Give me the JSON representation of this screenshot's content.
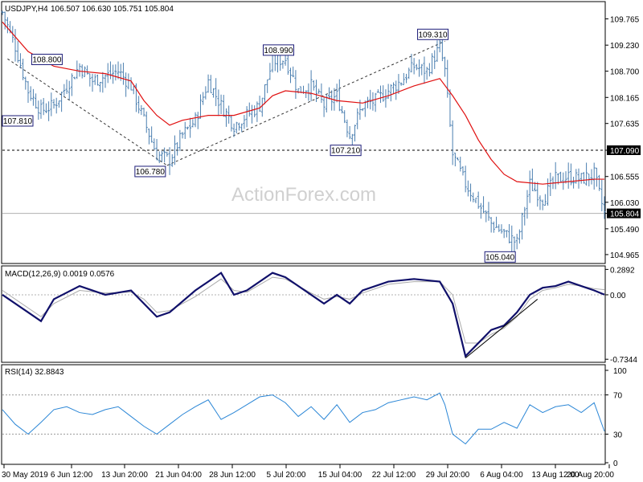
{
  "chart_data": {
    "symbol": "USDJPY,H4",
    "ohlc_header": "106.507 106.630 105.751 105.804",
    "watermark": "ActionForex.com",
    "x_tick_labels": [
      "30 May 2019",
      "6 Jun 12:00",
      "13 Jun 20:00",
      "21 Jun 04:00",
      "28 Jun 12:00",
      "5 Jul 20:00",
      "15 Jul 04:00",
      "22 Jul 12:00",
      "29 Jul 20:00",
      "6 Aug 04:00",
      "13 Aug 12:00",
      "20 Aug 20:00"
    ],
    "panels": [
      {
        "type": "bar",
        "name": "price",
        "y_tick_labels": [
          "109.765",
          "109.230",
          "108.700",
          "108.165",
          "107.635",
          "107.090",
          "106.555",
          "106.030",
          "105.804",
          "105.490",
          "104.965"
        ],
        "ylim": [
          104.8,
          110.1
        ],
        "last_price": "105.804",
        "reference_line": "107.090",
        "annotations": [
          {
            "label": "107.810",
            "value": 107.81
          },
          {
            "label": "108.800",
            "value": 108.8
          },
          {
            "label": "106.780",
            "value": 106.78
          },
          {
            "label": "108.990",
            "value": 108.99
          },
          {
            "label": "107.210",
            "value": 107.21
          },
          {
            "label": "109.310",
            "value": 109.31
          },
          {
            "label": "105.040",
            "value": 105.04
          }
        ],
        "price_path": [
          [
            0,
            109.9
          ],
          [
            5,
            109.2
          ],
          [
            10,
            108.3
          ],
          [
            15,
            107.9
          ],
          [
            20,
            108.0
          ],
          [
            25,
            108.4
          ],
          [
            30,
            108.8
          ],
          [
            35,
            108.5
          ],
          [
            40,
            108.6
          ],
          [
            45,
            108.7
          ],
          [
            50,
            108.4
          ],
          [
            55,
            107.7
          ],
          [
            60,
            107.0
          ],
          [
            65,
            106.9
          ],
          [
            70,
            107.4
          ],
          [
            75,
            107.7
          ],
          [
            80,
            108.5
          ],
          [
            85,
            108.0
          ],
          [
            90,
            107.6
          ],
          [
            95,
            107.8
          ],
          [
            100,
            108.0
          ],
          [
            105,
            108.9
          ],
          [
            110,
            108.95
          ],
          [
            115,
            108.3
          ],
          [
            120,
            108.4
          ],
          [
            125,
            108.0
          ],
          [
            130,
            108.2
          ],
          [
            135,
            107.4
          ],
          [
            140,
            108.0
          ],
          [
            145,
            108.1
          ],
          [
            150,
            108.3
          ],
          [
            155,
            108.5
          ],
          [
            160,
            108.8
          ],
          [
            165,
            108.7
          ],
          [
            170,
            109.2
          ],
          [
            172,
            108.7
          ],
          [
            175,
            107.0
          ],
          [
            180,
            106.4
          ],
          [
            185,
            106.0
          ],
          [
            190,
            105.6
          ],
          [
            195,
            105.4
          ],
          [
            200,
            105.2
          ],
          [
            205,
            106.4
          ],
          [
            210,
            106.1
          ],
          [
            215,
            106.5
          ],
          [
            220,
            106.55
          ],
          [
            225,
            106.5
          ],
          [
            230,
            106.6
          ],
          [
            234,
            105.8
          ]
        ],
        "ma_path": [
          [
            0,
            109.7
          ],
          [
            10,
            109.1
          ],
          [
            20,
            108.8
          ],
          [
            30,
            108.7
          ],
          [
            40,
            108.65
          ],
          [
            50,
            108.5
          ],
          [
            55,
            108.1
          ],
          [
            60,
            107.8
          ],
          [
            65,
            107.6
          ],
          [
            70,
            107.7
          ],
          [
            80,
            107.8
          ],
          [
            90,
            107.8
          ],
          [
            100,
            107.95
          ],
          [
            105,
            108.2
          ],
          [
            110,
            108.3
          ],
          [
            120,
            108.25
          ],
          [
            130,
            108.1
          ],
          [
            140,
            108.05
          ],
          [
            150,
            108.2
          ],
          [
            160,
            108.4
          ],
          [
            170,
            108.55
          ],
          [
            175,
            108.2
          ],
          [
            180,
            107.8
          ],
          [
            185,
            107.3
          ],
          [
            190,
            106.9
          ],
          [
            195,
            106.6
          ],
          [
            200,
            106.45
          ],
          [
            210,
            106.4
          ],
          [
            220,
            106.45
          ],
          [
            230,
            106.5
          ],
          [
            234,
            106.5
          ]
        ]
      },
      {
        "type": "line",
        "name": "MACD(12,26,9)",
        "header": "MACD(12,26,9) 0.0019 0.0576",
        "y_tick_labels": [
          "0.2892",
          "0.00",
          "-0.7344"
        ],
        "ylim": [
          -0.76,
          0.32
        ],
        "series": [
          {
            "name": "MACD",
            "values": [
              [
                0,
                0.0
              ],
              [
                10,
                -0.2
              ],
              [
                15,
                -0.3
              ],
              [
                20,
                -0.05
              ],
              [
                30,
                0.1
              ],
              [
                40,
                0.0
              ],
              [
                50,
                0.05
              ],
              [
                55,
                -0.1
              ],
              [
                60,
                -0.25
              ],
              [
                65,
                -0.2
              ],
              [
                75,
                0.05
              ],
              [
                85,
                0.25
              ],
              [
                90,
                0.0
              ],
              [
                95,
                0.05
              ],
              [
                105,
                0.25
              ],
              [
                110,
                0.2
              ],
              [
                120,
                0.0
              ],
              [
                125,
                -0.1
              ],
              [
                130,
                0.0
              ],
              [
                135,
                -0.1
              ],
              [
                140,
                0.05
              ],
              [
                150,
                0.15
              ],
              [
                160,
                0.18
              ],
              [
                170,
                0.15
              ],
              [
                175,
                -0.1
              ],
              [
                180,
                -0.7
              ],
              [
                185,
                -0.55
              ],
              [
                190,
                -0.4
              ],
              [
                195,
                -0.35
              ],
              [
                200,
                -0.2
              ],
              [
                205,
                0.0
              ],
              [
                210,
                0.08
              ],
              [
                215,
                0.1
              ],
              [
                220,
                0.15
              ],
              [
                225,
                0.1
              ],
              [
                230,
                0.05
              ],
              [
                234,
                0.0019
              ]
            ]
          },
          {
            "name": "Signal",
            "values": [
              [
                0,
                0.05
              ],
              [
                10,
                -0.15
              ],
              [
                15,
                -0.25
              ],
              [
                20,
                -0.1
              ],
              [
                30,
                0.05
              ],
              [
                40,
                0.02
              ],
              [
                50,
                0.03
              ],
              [
                55,
                -0.05
              ],
              [
                60,
                -0.2
              ],
              [
                65,
                -0.18
              ],
              [
                75,
                -0.02
              ],
              [
                85,
                0.18
              ],
              [
                90,
                0.05
              ],
              [
                95,
                0.03
              ],
              [
                105,
                0.2
              ],
              [
                110,
                0.18
              ],
              [
                120,
                0.02
              ],
              [
                125,
                -0.05
              ],
              [
                130,
                -0.02
              ],
              [
                135,
                -0.05
              ],
              [
                140,
                0.02
              ],
              [
                150,
                0.12
              ],
              [
                160,
                0.15
              ],
              [
                170,
                0.15
              ],
              [
                175,
                0.0
              ],
              [
                180,
                -0.55
              ],
              [
                185,
                -0.55
              ],
              [
                190,
                -0.45
              ],
              [
                195,
                -0.38
              ],
              [
                200,
                -0.25
              ],
              [
                205,
                -0.05
              ],
              [
                210,
                0.05
              ],
              [
                215,
                0.08
              ],
              [
                220,
                0.12
              ],
              [
                225,
                0.1
              ],
              [
                230,
                0.07
              ],
              [
                234,
                0.0576
              ]
            ]
          }
        ],
        "trendline": [
          [
            180,
            -0.72
          ],
          [
            208,
            -0.05
          ]
        ]
      },
      {
        "type": "line",
        "name": "RSI(14)",
        "header": "RSI(14) 32.8843",
        "y_tick_labels": [
          "100",
          "70",
          "30",
          "0"
        ],
        "ylim": [
          0,
          100
        ],
        "levels": [
          70,
          30
        ],
        "values": [
          [
            0,
            55
          ],
          [
            5,
            40
          ],
          [
            10,
            30
          ],
          [
            15,
            42
          ],
          [
            20,
            55
          ],
          [
            25,
            58
          ],
          [
            30,
            52
          ],
          [
            35,
            50
          ],
          [
            40,
            55
          ],
          [
            45,
            58
          ],
          [
            50,
            48
          ],
          [
            55,
            38
          ],
          [
            60,
            30
          ],
          [
            65,
            40
          ],
          [
            70,
            50
          ],
          [
            75,
            58
          ],
          [
            80,
            65
          ],
          [
            85,
            45
          ],
          [
            90,
            52
          ],
          [
            95,
            60
          ],
          [
            100,
            68
          ],
          [
            105,
            70
          ],
          [
            110,
            62
          ],
          [
            115,
            48
          ],
          [
            120,
            58
          ],
          [
            125,
            45
          ],
          [
            130,
            60
          ],
          [
            135,
            42
          ],
          [
            140,
            52
          ],
          [
            145,
            55
          ],
          [
            150,
            62
          ],
          [
            155,
            65
          ],
          [
            160,
            68
          ],
          [
            165,
            65
          ],
          [
            170,
            72
          ],
          [
            172,
            60
          ],
          [
            175,
            30
          ],
          [
            180,
            20
          ],
          [
            185,
            35
          ],
          [
            190,
            35
          ],
          [
            195,
            42
          ],
          [
            200,
            36
          ],
          [
            205,
            60
          ],
          [
            210,
            52
          ],
          [
            215,
            58
          ],
          [
            220,
            60
          ],
          [
            225,
            52
          ],
          [
            230,
            62
          ],
          [
            234,
            32.8843
          ]
        ]
      }
    ],
    "colors": {
      "bars": "#4b7fb0",
      "ma": "#e01010",
      "macd": "#10106a",
      "signal": "#aaaaaa",
      "rsi": "#2a86d6",
      "annot": "#1c1c78"
    }
  }
}
